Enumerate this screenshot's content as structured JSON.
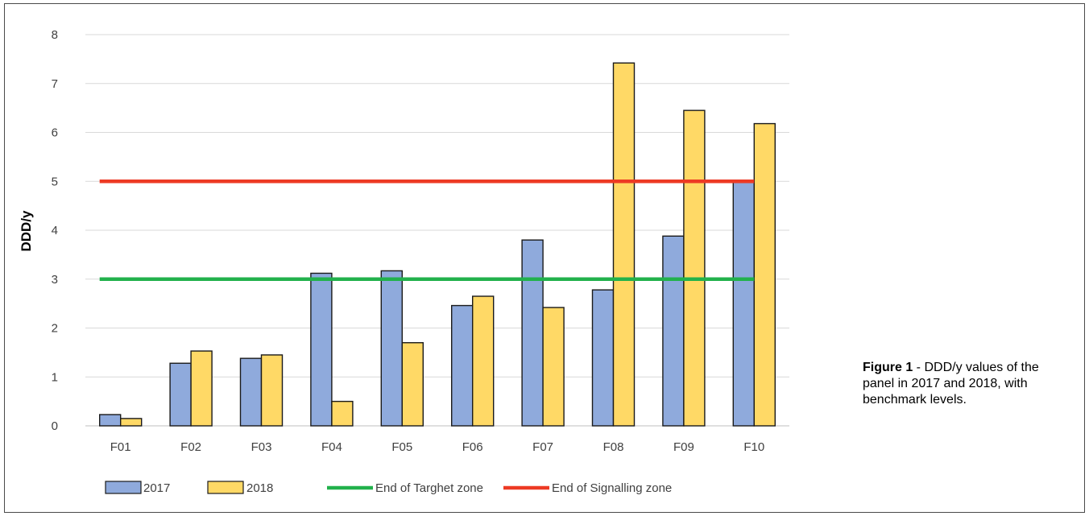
{
  "chart_data": {
    "type": "bar",
    "categories": [
      "F01",
      "F02",
      "F03",
      "F04",
      "F05",
      "F06",
      "F07",
      "F08",
      "F09",
      "F10"
    ],
    "series": [
      {
        "name": "2017",
        "color": "#8FAADC",
        "values": [
          0.23,
          1.28,
          1.38,
          3.12,
          3.17,
          2.46,
          3.8,
          2.78,
          3.88,
          5.0
        ]
      },
      {
        "name": "2018",
        "color": "#FFD966",
        "values": [
          0.15,
          1.53,
          1.45,
          0.5,
          1.7,
          2.65,
          2.42,
          7.42,
          6.45,
          6.18
        ]
      }
    ],
    "reference_lines": [
      {
        "name": "End of Targhet zone",
        "value": 3,
        "color": "#22B14C"
      },
      {
        "name": "End of Signalling zone",
        "value": 5,
        "color": "#ED3A24"
      }
    ],
    "ylabel": "DDD/y",
    "xlabel": "",
    "ylim": [
      0,
      8
    ],
    "yticks": [
      "0",
      "1",
      "2",
      "3",
      "4",
      "5",
      "6",
      "7",
      "8"
    ],
    "grid": true,
    "legend_position": "bottom"
  },
  "caption": {
    "label": "Figure 1",
    "text": " - DDD/y values of the panel in 2017 and 2018, with benchmark levels."
  }
}
